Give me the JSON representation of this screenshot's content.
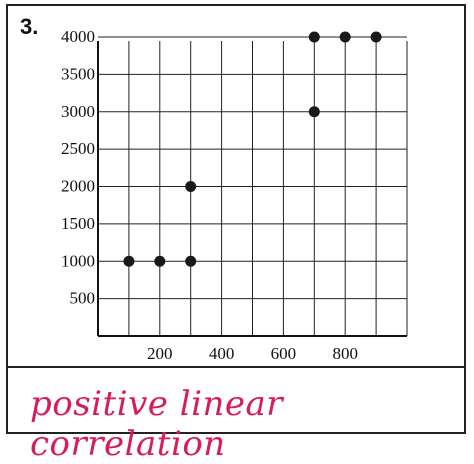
{
  "problem": {
    "number": "3."
  },
  "chart_data": {
    "type": "scatter",
    "title": "",
    "xlabel": "",
    "ylabel": "",
    "xlim": [
      0,
      1000
    ],
    "ylim": [
      0,
      4000
    ],
    "grid": true,
    "x_ticks": [
      {
        "value": 200,
        "label": "200"
      },
      {
        "value": 400,
        "label": "400"
      },
      {
        "value": 600,
        "label": "600"
      },
      {
        "value": 800,
        "label": "800"
      }
    ],
    "y_ticks": [
      {
        "value": 500,
        "label": "500"
      },
      {
        "value": 1000,
        "label": "1000"
      },
      {
        "value": 1500,
        "label": "1500"
      },
      {
        "value": 2000,
        "label": "2000"
      },
      {
        "value": 2500,
        "label": "2500"
      },
      {
        "value": 3000,
        "label": "3000"
      },
      {
        "value": 3500,
        "label": "3500"
      },
      {
        "value": 4000,
        "label": "4000"
      }
    ],
    "points": [
      {
        "x": 100,
        "y": 1000
      },
      {
        "x": 200,
        "y": 1000
      },
      {
        "x": 300,
        "y": 1000
      },
      {
        "x": 300,
        "y": 2000
      },
      {
        "x": 700,
        "y": 3000
      },
      {
        "x": 700,
        "y": 4000
      },
      {
        "x": 800,
        "y": 4000
      },
      {
        "x": 900,
        "y": 4000
      }
    ],
    "point_color": "#1a1a1a",
    "grid_color": "#222222"
  },
  "answer": {
    "text": "positive linear correlation",
    "color": "#d81b5a"
  }
}
